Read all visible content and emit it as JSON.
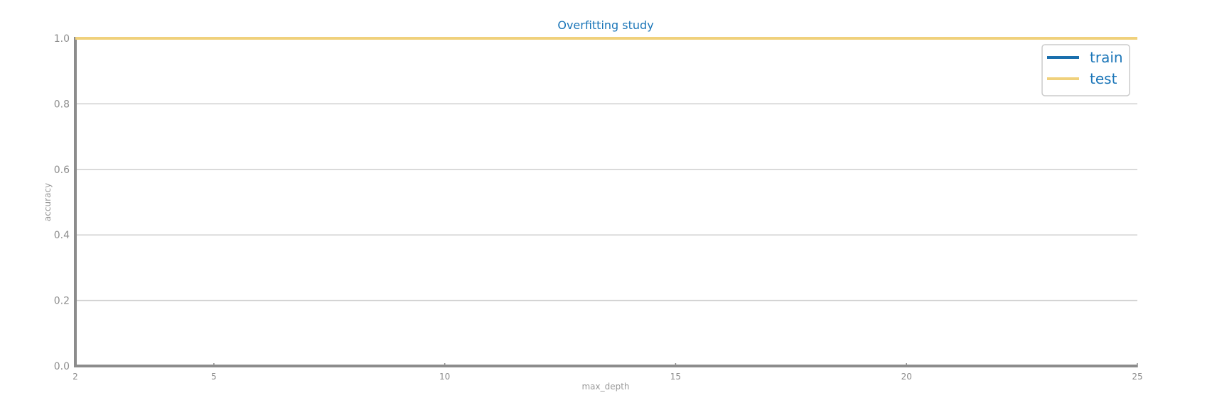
{
  "chart_data": {
    "type": "line",
    "title": "Overfitting study",
    "xlabel": "max_depth",
    "ylabel": "accuracy",
    "x": [
      2,
      3,
      4,
      5,
      6,
      7,
      8,
      9,
      10,
      11,
      12,
      13,
      14,
      15,
      16,
      17,
      18,
      19,
      20,
      21,
      22,
      23,
      24,
      25
    ],
    "xlim": [
      2,
      25
    ],
    "ylim": [
      0.0,
      1.0
    ],
    "x_ticks": [
      2,
      5,
      10,
      15,
      20,
      25
    ],
    "y_ticks": [
      0.0,
      0.2,
      0.4,
      0.6,
      0.8,
      1.0
    ],
    "x_tick_labels": [
      "2",
      "5",
      "10",
      "15",
      "20",
      "25"
    ],
    "y_tick_labels": [
      "0.0",
      "0.2",
      "0.4",
      "0.6",
      "0.8",
      "1.0"
    ],
    "grid": "horizontal",
    "legend_position": "top-right",
    "series": [
      {
        "name": "train",
        "color": "#1a6fad",
        "values": [
          1.0,
          1.0,
          1.0,
          1.0,
          1.0,
          1.0,
          1.0,
          1.0,
          1.0,
          1.0,
          1.0,
          1.0,
          1.0,
          1.0,
          1.0,
          1.0,
          1.0,
          1.0,
          1.0,
          1.0,
          1.0,
          1.0,
          1.0,
          1.0
        ]
      },
      {
        "name": "test",
        "color": "#f0d17c",
        "values": [
          1.0,
          1.0,
          1.0,
          1.0,
          1.0,
          1.0,
          1.0,
          1.0,
          1.0,
          1.0,
          1.0,
          1.0,
          1.0,
          1.0,
          1.0,
          1.0,
          1.0,
          1.0,
          1.0,
          1.0,
          1.0,
          1.0,
          1.0,
          1.0
        ]
      }
    ],
    "colors": {
      "title": "#1a75b8",
      "axis": "#8c8c8c",
      "tick_label": "#8c8c8c",
      "axis_label": "#9a9a9a",
      "grid": "#cfcfcf",
      "legend_text": "#1a75b8",
      "legend_border": "#cccccc"
    }
  }
}
